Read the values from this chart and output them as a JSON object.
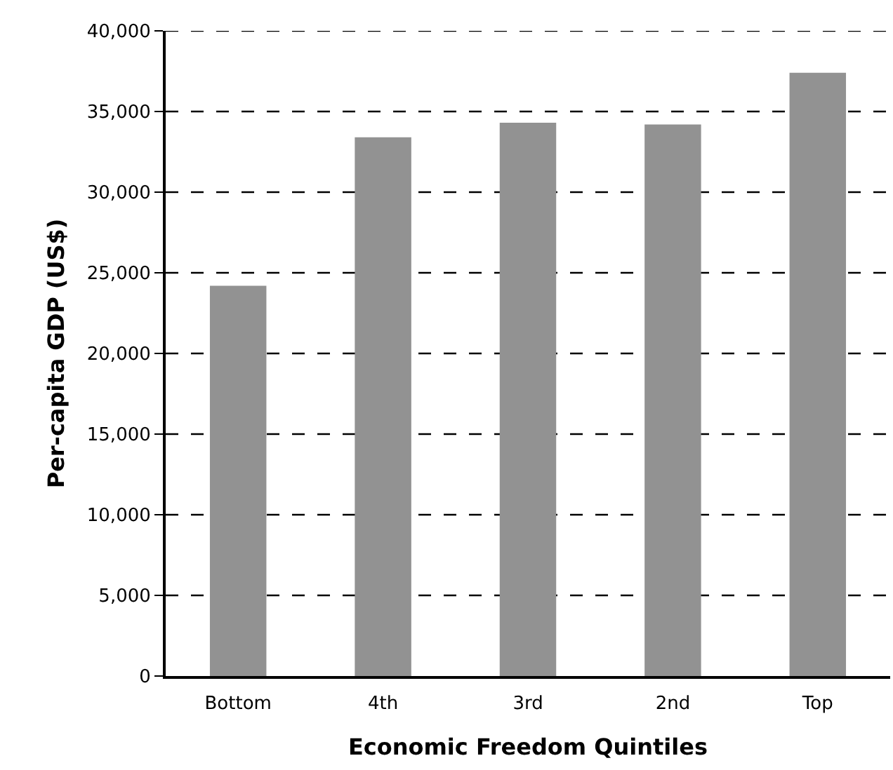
{
  "chart_data": {
    "type": "bar",
    "xlabel": "Economic Freedom Quintiles",
    "ylabel": "Per-capita GDP (US$)",
    "categories": [
      "Bottom",
      "4th",
      "3rd",
      "2nd",
      "Top"
    ],
    "values": [
      24200,
      33400,
      34300,
      34200,
      37400
    ],
    "color": "#929292",
    "ylim": [
      0,
      40000
    ],
    "yticks": [
      {
        "value": 0,
        "label": "0"
      },
      {
        "value": 5000,
        "label": "5,000"
      },
      {
        "value": 10000,
        "label": "10,000"
      },
      {
        "value": 15000,
        "label": "15,000"
      },
      {
        "value": 20000,
        "label": "20,000"
      },
      {
        "value": 25000,
        "label": "25,000"
      },
      {
        "value": 30000,
        "label": "30,000"
      },
      {
        "value": 35000,
        "label": "35,000"
      },
      {
        "value": 40000,
        "label": "40,000"
      }
    ],
    "grid": "y",
    "line_style": "dashed"
  }
}
